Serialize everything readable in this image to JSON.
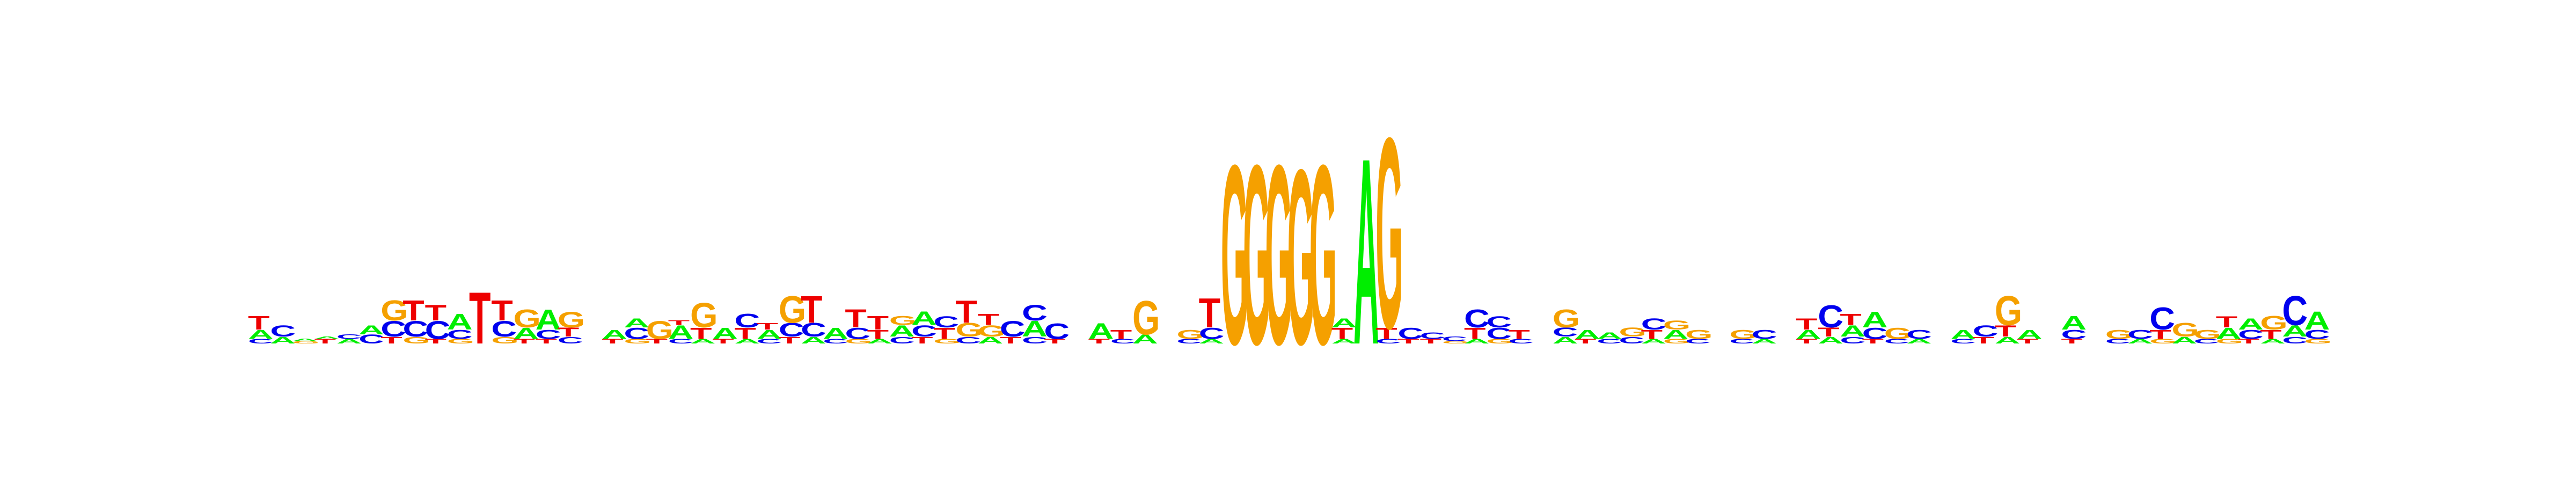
{
  "colors": {
    "A": "#00ee00",
    "C": "#0000ee",
    "G": "#f5a000",
    "T": "#ee0000"
  },
  "chart_data": {
    "type": "sequence-logo",
    "title": "",
    "xlabel": "",
    "ylabel": "",
    "axes_visible": false,
    "grid": false,
    "ylim": [
      0,
      2
    ],
    "alphabet": [
      "A",
      "C",
      "G",
      "T"
    ],
    "positions": [
      [
        [
          "C",
          0.02
        ],
        [
          "A",
          0.04
        ],
        [
          "T",
          0.06
        ]
      ],
      [
        [
          "A",
          0.03
        ],
        [
          "C",
          0.05
        ]
      ],
      [
        [
          "G",
          0.01
        ],
        [
          "A",
          0.01
        ]
      ],
      [
        [
          "T",
          0.02
        ],
        [
          "A",
          0.01
        ]
      ],
      [
        [
          "A",
          0.02
        ],
        [
          "C",
          0.02
        ]
      ],
      [
        [
          "C",
          0.04
        ],
        [
          "A",
          0.04
        ]
      ],
      [
        [
          "T",
          0.03
        ],
        [
          "C",
          0.07
        ],
        [
          "G",
          0.09
        ]
      ],
      [
        [
          "G",
          0.03
        ],
        [
          "C",
          0.07
        ],
        [
          "T",
          0.09
        ]
      ],
      [
        [
          "T",
          0.02
        ],
        [
          "C",
          0.08
        ],
        [
          "T",
          0.07
        ]
      ],
      [
        [
          "G",
          0.02
        ],
        [
          "C",
          0.04
        ],
        [
          "A",
          0.07
        ]
      ],
      [
        [
          "T",
          0.23
        ]
      ],
      [
        [
          "G",
          0.03
        ],
        [
          "C",
          0.07
        ],
        [
          "T",
          0.09
        ]
      ],
      [
        [
          "T",
          0.02
        ],
        [
          "A",
          0.05
        ],
        [
          "G",
          0.08
        ]
      ],
      [
        [
          "T",
          0.02
        ],
        [
          "C",
          0.04
        ],
        [
          "A",
          0.09
        ]
      ],
      [
        [
          "C",
          0.03
        ],
        [
          "T",
          0.04
        ],
        [
          "G",
          0.07
        ]
      ],
      [],
      [
        [
          "T",
          0.02
        ],
        [
          "A",
          0.04
        ]
      ],
      [
        [
          "G",
          0.02
        ],
        [
          "C",
          0.05
        ],
        [
          "A",
          0.04
        ]
      ],
      [
        [
          "T",
          0.02
        ],
        [
          "G",
          0.08
        ]
      ],
      [
        [
          "C",
          0.02
        ],
        [
          "A",
          0.06
        ],
        [
          "T",
          0.02
        ]
      ],
      [
        [
          "A",
          0.02
        ],
        [
          "T",
          0.05
        ],
        [
          "G",
          0.11
        ]
      ],
      [
        [
          "T",
          0.02
        ],
        [
          "A",
          0.05
        ]
      ],
      [
        [
          "A",
          0.02
        ],
        [
          "T",
          0.05
        ],
        [
          "C",
          0.06
        ]
      ],
      [
        [
          "C",
          0.02
        ],
        [
          "A",
          0.04
        ],
        [
          "T",
          0.03
        ]
      ],
      [
        [
          "T",
          0.03
        ],
        [
          "C",
          0.06
        ],
        [
          "G",
          0.12
        ]
      ],
      [
        [
          "A",
          0.03
        ],
        [
          "C",
          0.06
        ],
        [
          "T",
          0.12
        ]
      ],
      [
        [
          "C",
          0.02
        ],
        [
          "A",
          0.05
        ]
      ],
      [
        [
          "G",
          0.02
        ],
        [
          "C",
          0.05
        ],
        [
          "T",
          0.08
        ]
      ],
      [
        [
          "A",
          0.02
        ],
        [
          "T",
          0.04
        ],
        [
          "T",
          0.06
        ]
      ],
      [
        [
          "C",
          0.03
        ],
        [
          "A",
          0.05
        ],
        [
          "G",
          0.04
        ]
      ],
      [
        [
          "T",
          0.03
        ],
        [
          "C",
          0.05
        ],
        [
          "A",
          0.06
        ]
      ],
      [
        [
          "G",
          0.02
        ],
        [
          "T",
          0.05
        ],
        [
          "C",
          0.05
        ]
      ],
      [
        [
          "C",
          0.03
        ],
        [
          "G",
          0.06
        ],
        [
          "T",
          0.1
        ]
      ],
      [
        [
          "A",
          0.03
        ],
        [
          "G",
          0.05
        ],
        [
          "T",
          0.05
        ]
      ],
      [
        [
          "T",
          0.03
        ],
        [
          "C",
          0.07
        ]
      ],
      [
        [
          "C",
          0.03
        ],
        [
          "A",
          0.07
        ],
        [
          "C",
          0.07
        ]
      ],
      [
        [
          "T",
          0.02
        ],
        [
          "C",
          0.07
        ]
      ],
      [],
      [
        [
          "T",
          0.02
        ],
        [
          "A",
          0.07
        ]
      ],
      [
        [
          "C",
          0.02
        ],
        [
          "T",
          0.04
        ]
      ],
      [
        [
          "A",
          0.04
        ],
        [
          "G",
          0.15
        ]
      ],
      [],
      [
        [
          "C",
          0.02
        ],
        [
          "G",
          0.04
        ]
      ],
      [
        [
          "A",
          0.02
        ],
        [
          "C",
          0.05
        ],
        [
          "T",
          0.13
        ]
      ],
      [
        [
          "G",
          0.8
        ]
      ],
      [
        [
          "G",
          0.8
        ]
      ],
      [
        [
          "G",
          0.8
        ]
      ],
      [
        [
          "G",
          0.78
        ]
      ],
      [
        [
          "G",
          0.8
        ]
      ],
      [
        [
          "A",
          0.02
        ],
        [
          "T",
          0.05
        ],
        [
          "A",
          0.04
        ]
      ],
      [
        [
          "A",
          0.83
        ]
      ],
      [
        [
          "C",
          0.02
        ],
        [
          "T",
          0.05
        ],
        [
          "G",
          0.85
        ]
      ],
      [
        [
          "T",
          0.02
        ],
        [
          "C",
          0.05
        ]
      ],
      [
        [
          "T",
          0.02
        ],
        [
          "C",
          0.03
        ]
      ],
      [
        [
          "G",
          0.01
        ],
        [
          "C",
          0.02
        ]
      ],
      [
        [
          "A",
          0.02
        ],
        [
          "T",
          0.05
        ],
        [
          "C",
          0.08
        ]
      ],
      [
        [
          "G",
          0.02
        ],
        [
          "C",
          0.05
        ],
        [
          "C",
          0.05
        ]
      ],
      [
        [
          "C",
          0.02
        ],
        [
          "T",
          0.04
        ]
      ],
      [],
      [
        [
          "A",
          0.03
        ],
        [
          "C",
          0.04
        ],
        [
          "G",
          0.08
        ]
      ],
      [
        [
          "T",
          0.02
        ],
        [
          "A",
          0.04
        ]
      ],
      [
        [
          "C",
          0.02
        ],
        [
          "A",
          0.03
        ]
      ],
      [
        [
          "C",
          0.03
        ],
        [
          "G",
          0.04
        ]
      ],
      [
        [
          "A",
          0.02
        ],
        [
          "T",
          0.04
        ],
        [
          "C",
          0.05
        ]
      ],
      [
        [
          "G",
          0.02
        ],
        [
          "A",
          0.04
        ],
        [
          "G",
          0.04
        ]
      ],
      [
        [
          "C",
          0.02
        ],
        [
          "G",
          0.04
        ]
      ],
      [],
      [
        [
          "C",
          0.02
        ],
        [
          "G",
          0.04
        ]
      ],
      [
        [
          "A",
          0.02
        ],
        [
          "C",
          0.04
        ]
      ],
      [],
      [
        [
          "T",
          0.02
        ],
        [
          "A",
          0.04
        ],
        [
          "T",
          0.05
        ]
      ],
      [
        [
          "A",
          0.03
        ],
        [
          "T",
          0.04
        ],
        [
          "C",
          0.1
        ]
      ],
      [
        [
          "C",
          0.03
        ],
        [
          "A",
          0.05
        ],
        [
          "T",
          0.05
        ]
      ],
      [
        [
          "T",
          0.02
        ],
        [
          "C",
          0.05
        ],
        [
          "A",
          0.07
        ]
      ],
      [
        [
          "C",
          0.02
        ],
        [
          "G",
          0.05
        ]
      ],
      [
        [
          "A",
          0.02
        ],
        [
          "C",
          0.04
        ]
      ],
      [],
      [
        [
          "C",
          0.02
        ],
        [
          "A",
          0.04
        ]
      ],
      [
        [
          "T",
          0.03
        ],
        [
          "C",
          0.05
        ]
      ],
      [
        [
          "A",
          0.03
        ],
        [
          "T",
          0.05
        ],
        [
          "G",
          0.13
        ]
      ],
      [
        [
          "T",
          0.02
        ],
        [
          "A",
          0.04
        ]
      ],
      [],
      [
        [
          "T",
          0.02
        ],
        [
          "C",
          0.04
        ],
        [
          "A",
          0.06
        ]
      ],
      [],
      [
        [
          "C",
          0.02
        ],
        [
          "G",
          0.04
        ]
      ],
      [
        [
          "A",
          0.02
        ],
        [
          "C",
          0.04
        ]
      ],
      [
        [
          "G",
          0.02
        ],
        [
          "T",
          0.04
        ],
        [
          "C",
          0.1
        ]
      ],
      [
        [
          "A",
          0.03
        ],
        [
          "G",
          0.06
        ]
      ],
      [
        [
          "C",
          0.02
        ],
        [
          "G",
          0.04
        ]
      ],
      [
        [
          "G",
          0.02
        ],
        [
          "A",
          0.05
        ],
        [
          "T",
          0.05
        ]
      ],
      [
        [
          "T",
          0.02
        ],
        [
          "C",
          0.04
        ],
        [
          "A",
          0.05
        ]
      ],
      [
        [
          "A",
          0.02
        ],
        [
          "T",
          0.04
        ],
        [
          "G",
          0.06
        ]
      ],
      [
        [
          "C",
          0.03
        ],
        [
          "A",
          0.05
        ],
        [
          "C",
          0.13
        ]
      ],
      [
        [
          "G",
          0.02
        ],
        [
          "C",
          0.04
        ],
        [
          "A",
          0.08
        ]
      ]
    ]
  }
}
